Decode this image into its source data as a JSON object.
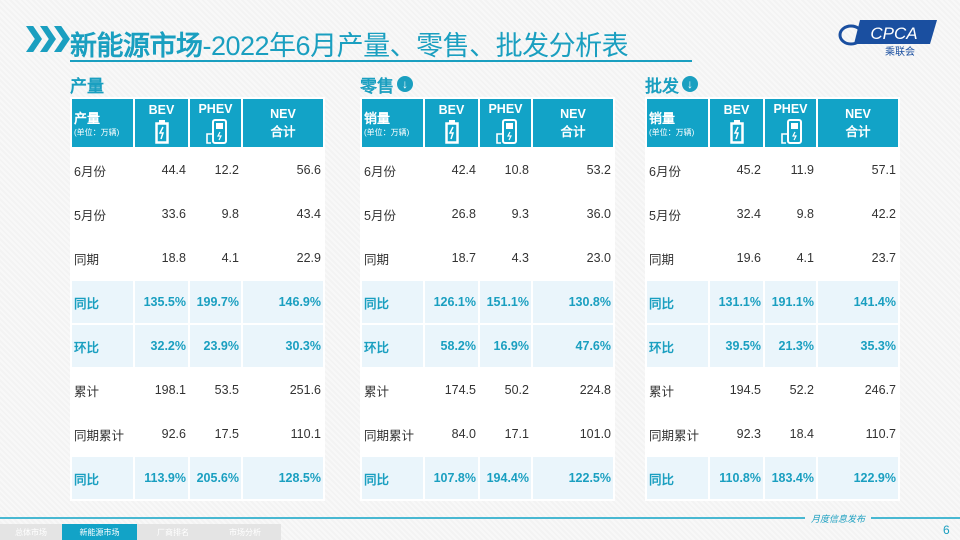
{
  "title": {
    "bold": "新能源市场",
    "rest": "-2022年6月产量、零售、批发分析表"
  },
  "logo": {
    "text": "CPCA",
    "sub": "乘联会",
    "mark": "CPCA"
  },
  "columns": {
    "bev": "BEV",
    "phev": "PHEV",
    "nev1": "NEV",
    "nev2": "合计",
    "unit": "(单位：万辆)"
  },
  "sections": [
    {
      "title": "产量",
      "label": "产量",
      "has_arrow": false,
      "rows": [
        {
          "name": "6月份",
          "v": [
            "44.4",
            "12.2",
            "56.6"
          ],
          "hl": false
        },
        {
          "name": "5月份",
          "v": [
            "33.6",
            "9.8",
            "43.4"
          ],
          "hl": false
        },
        {
          "name": "同期",
          "v": [
            "18.8",
            "4.1",
            "22.9"
          ],
          "hl": false
        },
        {
          "name": "同比",
          "v": [
            "135.5%",
            "199.7%",
            "146.9%"
          ],
          "hl": true
        },
        {
          "name": "环比",
          "v": [
            "32.2%",
            "23.9%",
            "30.3%"
          ],
          "hl": true
        },
        {
          "name": "累计",
          "v": [
            "198.1",
            "53.5",
            "251.6"
          ],
          "hl": false
        },
        {
          "name": "同期累计",
          "v": [
            "92.6",
            "17.5",
            "110.1"
          ],
          "hl": false
        },
        {
          "name": "同比",
          "v": [
            "113.9%",
            "205.6%",
            "128.5%"
          ],
          "hl": true
        }
      ]
    },
    {
      "title": "零售",
      "label": "销量",
      "has_arrow": true,
      "rows": [
        {
          "name": "6月份",
          "v": [
            "42.4",
            "10.8",
            "53.2"
          ],
          "hl": false
        },
        {
          "name": "5月份",
          "v": [
            "26.8",
            "9.3",
            "36.0"
          ],
          "hl": false
        },
        {
          "name": "同期",
          "v": [
            "18.7",
            "4.3",
            "23.0"
          ],
          "hl": false
        },
        {
          "name": "同比",
          "v": [
            "126.1%",
            "151.1%",
            "130.8%"
          ],
          "hl": true
        },
        {
          "name": "环比",
          "v": [
            "58.2%",
            "16.9%",
            "47.6%"
          ],
          "hl": true
        },
        {
          "name": "累计",
          "v": [
            "174.5",
            "50.2",
            "224.8"
          ],
          "hl": false
        },
        {
          "name": "同期累计",
          "v": [
            "84.0",
            "17.1",
            "101.0"
          ],
          "hl": false
        },
        {
          "name": "同比",
          "v": [
            "107.8%",
            "194.4%",
            "122.5%"
          ],
          "hl": true
        }
      ]
    },
    {
      "title": "批发",
      "label": "销量",
      "has_arrow": true,
      "rows": [
        {
          "name": "6月份",
          "v": [
            "45.2",
            "11.9",
            "57.1"
          ],
          "hl": false
        },
        {
          "name": "5月份",
          "v": [
            "32.4",
            "9.8",
            "42.2"
          ],
          "hl": false
        },
        {
          "name": "同期",
          "v": [
            "19.6",
            "4.1",
            "23.7"
          ],
          "hl": false
        },
        {
          "name": "同比",
          "v": [
            "131.1%",
            "191.1%",
            "141.4%"
          ],
          "hl": true
        },
        {
          "name": "环比",
          "v": [
            "39.5%",
            "21.3%",
            "35.3%"
          ],
          "hl": true
        },
        {
          "name": "累计",
          "v": [
            "194.5",
            "52.2",
            "246.7"
          ],
          "hl": false
        },
        {
          "name": "同期累计",
          "v": [
            "92.3",
            "18.4",
            "110.7"
          ],
          "hl": false
        },
        {
          "name": "同比",
          "v": [
            "110.8%",
            "183.4%",
            "122.9%"
          ],
          "hl": true
        }
      ]
    }
  ],
  "footer": {
    "tabs": [
      "总体市场",
      "新能源市场",
      "厂商排名",
      "市场分析"
    ],
    "active": 1,
    "monthly": "月度信息发布",
    "page": "6"
  },
  "colors": {
    "accent": "#12a3c7",
    "highlight_bg": "#eaf5fb"
  }
}
